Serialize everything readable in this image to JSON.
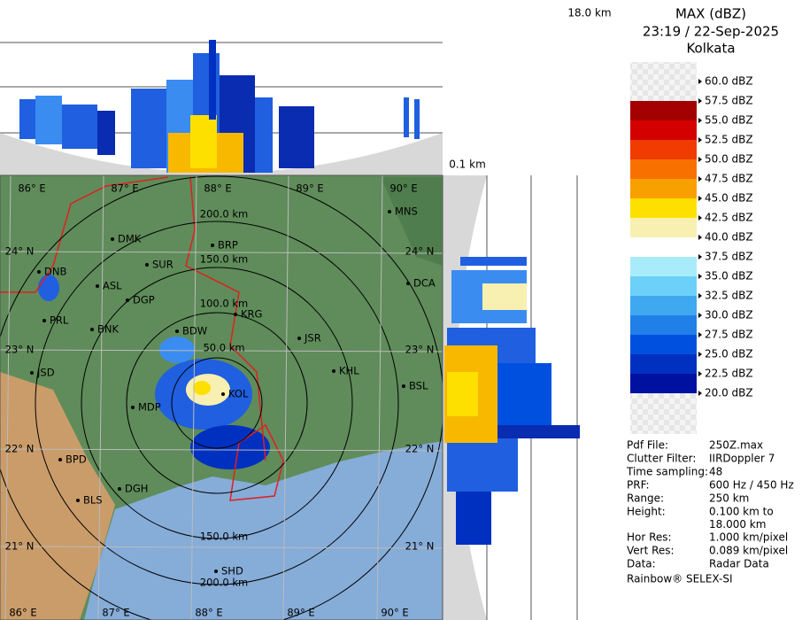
{
  "header": {
    "title": "MAX (dBZ)",
    "time": "23:19 / 22-Sep-2025",
    "place": "Kolkata"
  },
  "section": {
    "top_height": "18.0 km",
    "bottom_height": "0.1 km"
  },
  "legend": [
    {
      "label": "60.0 dBZ",
      "color": "#ececec"
    },
    {
      "label": "57.5 dBZ",
      "color": "#a40000"
    },
    {
      "label": "55.0 dBZ",
      "color": "#d40000"
    },
    {
      "label": "52.5 dBZ",
      "color": "#f03c00"
    },
    {
      "label": "50.0 dBZ",
      "color": "#f87000"
    },
    {
      "label": "47.5 dBZ",
      "color": "#f8a000"
    },
    {
      "label": "45.0 dBZ",
      "color": "#fde000"
    },
    {
      "label": "42.5 dBZ",
      "color": "#f8f0b0"
    },
    {
      "label": "40.0 dBZ",
      "color": "#ffffff"
    },
    {
      "label": "37.5 dBZ",
      "color": "#a8ecfc"
    },
    {
      "label": "35.0 dBZ",
      "color": "#6cd0f8"
    },
    {
      "label": "32.5 dBZ",
      "color": "#40a8f0"
    },
    {
      "label": "30.0 dBZ",
      "color": "#2080e8"
    },
    {
      "label": "27.5 dBZ",
      "color": "#0050e0"
    },
    {
      "label": "25.0 dBZ",
      "color": "#0030c0"
    },
    {
      "label": "22.5 dBZ",
      "color": "#0010a0"
    },
    {
      "label": "20.0 dBZ",
      "color": "#ececec"
    }
  ],
  "map": {
    "lon_labels": [
      "86° E",
      "87° E",
      "88° E",
      "89° E",
      "90° E"
    ],
    "lat_labels": [
      "24° N",
      "23° N",
      "22° N",
      "21° N"
    ],
    "range_labels": [
      "200.0 km",
      "150.0 km",
      "100.0 km",
      "50.0 km",
      "150.0 km",
      "200.0 km"
    ],
    "places": [
      "MNS",
      "DMK",
      "BRP",
      "SUR",
      "DNB",
      "ASL",
      "DGP",
      "DCA",
      "KRG",
      "PRL",
      "BNK",
      "BDW",
      "JSR",
      "KHL",
      "JSD",
      "BSL",
      "MDP",
      "KOL",
      "BPD",
      "DGH",
      "BLS",
      "SHD"
    ]
  },
  "info": [
    {
      "label": "Pdf File:",
      "value": "250Z.max"
    },
    {
      "label": "Clutter Filter:",
      "value": "IIRDoppler 7"
    },
    {
      "label": "Time sampling:",
      "value": "48"
    },
    {
      "label": "PRF:",
      "value": "600 Hz / 450 Hz"
    },
    {
      "label": "Range:",
      "value": "250 km"
    },
    {
      "label": "Height:",
      "value": [
        "0.100 km to",
        "18.000 km"
      ]
    },
    {
      "label": "Hor Res:",
      "value": "1.000 km/pixel"
    },
    {
      "label": "Vert Res:",
      "value": "0.089 km/pixel"
    },
    {
      "label": "Data:",
      "value": "Radar Data"
    }
  ],
  "footer": "Rainbow® SELEX-SI"
}
